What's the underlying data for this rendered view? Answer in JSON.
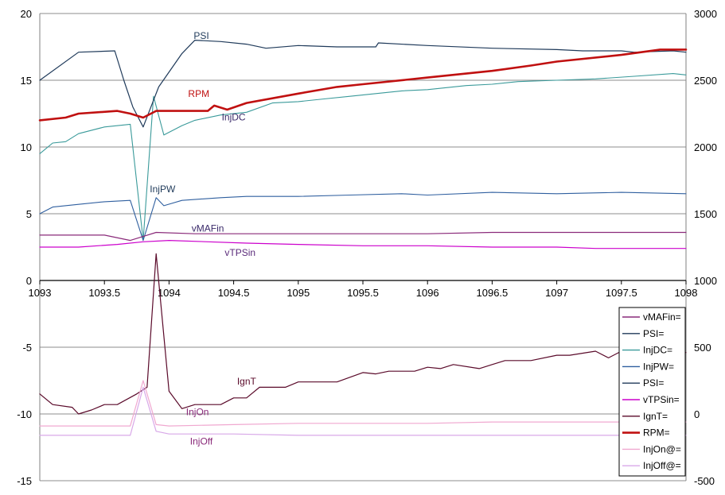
{
  "chart_data": {
    "type": "line",
    "xlim": [
      1093,
      1098
    ],
    "ylim_left": [
      -15,
      20
    ],
    "ylim_right": [
      -500,
      3000
    ],
    "x_ticks": [
      "1093",
      "1093.5",
      "1094",
      "1094.5",
      "1095",
      "1095.5",
      "1096",
      "1096.5",
      "1097",
      "1097.5",
      "1098"
    ],
    "y_ticks_left": [
      "-15",
      "-10",
      "-5",
      "0",
      "5",
      "10",
      "15",
      "20"
    ],
    "y_ticks_right": [
      "-500",
      "0",
      "500",
      "1000",
      "1500",
      "2000",
      "2500",
      "3000"
    ],
    "gridlines": "horizontal",
    "legend_position": "bottom-right",
    "series": [
      {
        "name": "PSI",
        "legend": "PSI=",
        "label": "PSI",
        "axis": "left",
        "color": "#1f3a5a",
        "width": 1.2,
        "points": [
          [
            1093,
            15
          ],
          [
            1093.3,
            17.1
          ],
          [
            1093.58,
            17.2
          ],
          [
            1093.65,
            15
          ],
          [
            1093.72,
            13
          ],
          [
            1093.8,
            11.5
          ],
          [
            1093.92,
            14.5
          ],
          [
            1094.1,
            17
          ],
          [
            1094.2,
            18
          ],
          [
            1094.4,
            17.9
          ],
          [
            1094.6,
            17.7
          ],
          [
            1094.75,
            17.4
          ],
          [
            1095,
            17.6
          ],
          [
            1095.3,
            17.5
          ],
          [
            1095.6,
            17.5
          ],
          [
            1095.62,
            17.8
          ],
          [
            1096,
            17.6
          ],
          [
            1096.5,
            17.4
          ],
          [
            1097,
            17.3
          ],
          [
            1097.2,
            17.2
          ],
          [
            1097.5,
            17.2
          ],
          [
            1097.6,
            17.1
          ],
          [
            1097.9,
            17.2
          ],
          [
            1098,
            17.1
          ]
        ]
      },
      {
        "name": "RPM",
        "legend": "RPM=",
        "label": "RPM",
        "axis": "right",
        "color": "#c01010",
        "width": 2.6,
        "points": [
          [
            1093,
            2200
          ],
          [
            1093.2,
            2220
          ],
          [
            1093.3,
            2250
          ],
          [
            1093.6,
            2270
          ],
          [
            1093.7,
            2250
          ],
          [
            1093.8,
            2220
          ],
          [
            1093.9,
            2270
          ],
          [
            1094,
            2270
          ],
          [
            1094.3,
            2270
          ],
          [
            1094.35,
            2310
          ],
          [
            1094.45,
            2280
          ],
          [
            1094.6,
            2330
          ],
          [
            1095,
            2400
          ],
          [
            1095.3,
            2450
          ],
          [
            1095.5,
            2470
          ],
          [
            1096,
            2520
          ],
          [
            1096.5,
            2570
          ],
          [
            1096.8,
            2610
          ],
          [
            1097,
            2640
          ],
          [
            1097.5,
            2690
          ],
          [
            1097.8,
            2730
          ],
          [
            1098,
            2730
          ]
        ]
      },
      {
        "name": "InjDC",
        "legend": "InjDC=",
        "label": "InjDC",
        "axis": "left",
        "color": "#3a9a9a",
        "width": 1.1,
        "points": [
          [
            1093,
            9.5
          ],
          [
            1093.1,
            10.3
          ],
          [
            1093.2,
            10.4
          ],
          [
            1093.3,
            11
          ],
          [
            1093.5,
            11.5
          ],
          [
            1093.7,
            11.7
          ],
          [
            1093.8,
            3
          ],
          [
            1093.88,
            13.8
          ],
          [
            1093.96,
            10.9
          ],
          [
            1094.1,
            11.6
          ],
          [
            1094.2,
            12
          ],
          [
            1094.4,
            12.4
          ],
          [
            1094.6,
            12.6
          ],
          [
            1094.8,
            13.3
          ],
          [
            1095,
            13.4
          ],
          [
            1095.2,
            13.6
          ],
          [
            1095.4,
            13.8
          ],
          [
            1095.6,
            14
          ],
          [
            1095.8,
            14.2
          ],
          [
            1096,
            14.3
          ],
          [
            1096.3,
            14.6
          ],
          [
            1096.5,
            14.7
          ],
          [
            1096.7,
            14.9
          ],
          [
            1097,
            15
          ],
          [
            1097.3,
            15.1
          ],
          [
            1097.6,
            15.3
          ],
          [
            1097.9,
            15.5
          ],
          [
            1098,
            15.4
          ]
        ]
      },
      {
        "name": "InjPW",
        "legend": "InjPW=",
        "label": "InjPW",
        "axis": "left",
        "color": "#2f5f9f",
        "width": 1.1,
        "points": [
          [
            1093,
            5
          ],
          [
            1093.1,
            5.5
          ],
          [
            1093.3,
            5.7
          ],
          [
            1093.5,
            5.9
          ],
          [
            1093.7,
            6
          ],
          [
            1093.8,
            3
          ],
          [
            1093.9,
            6.2
          ],
          [
            1093.96,
            5.6
          ],
          [
            1094.1,
            6
          ],
          [
            1094.4,
            6.2
          ],
          [
            1094.6,
            6.3
          ],
          [
            1095,
            6.3
          ],
          [
            1095.4,
            6.4
          ],
          [
            1095.8,
            6.5
          ],
          [
            1096,
            6.4
          ],
          [
            1096.5,
            6.6
          ],
          [
            1097,
            6.5
          ],
          [
            1097.5,
            6.6
          ],
          [
            1098,
            6.5
          ]
        ]
      },
      {
        "name": "vMAFin",
        "legend": "vMAFin=",
        "label": "vMAFin",
        "axis": "left",
        "color": "#8a2a7a",
        "width": 1.2,
        "points": [
          [
            1093,
            3.4
          ],
          [
            1093.5,
            3.4
          ],
          [
            1093.7,
            3
          ],
          [
            1093.8,
            3.3
          ],
          [
            1093.9,
            3.6
          ],
          [
            1094.2,
            3.5
          ],
          [
            1094.5,
            3.5
          ],
          [
            1095,
            3.5
          ],
          [
            1095.5,
            3.5
          ],
          [
            1096,
            3.5
          ],
          [
            1096.5,
            3.6
          ],
          [
            1097,
            3.6
          ],
          [
            1097.5,
            3.6
          ],
          [
            1098,
            3.6
          ]
        ]
      },
      {
        "name": "vTPSin",
        "legend": "vTPSin=",
        "label": "vTPSin",
        "axis": "left",
        "color": "#cc00cc",
        "width": 1.2,
        "points": [
          [
            1093,
            2.5
          ],
          [
            1093.3,
            2.5
          ],
          [
            1093.6,
            2.7
          ],
          [
            1093.8,
            2.9
          ],
          [
            1094,
            3
          ],
          [
            1094.3,
            2.9
          ],
          [
            1094.6,
            2.8
          ],
          [
            1095,
            2.7
          ],
          [
            1095.5,
            2.6
          ],
          [
            1096,
            2.6
          ],
          [
            1096.5,
            2.5
          ],
          [
            1097,
            2.5
          ],
          [
            1097.3,
            2.4
          ],
          [
            1097.6,
            2.4
          ],
          [
            1098,
            2.4
          ]
        ]
      },
      {
        "name": "IgnT",
        "legend": "IgnT=",
        "label": "IgnT",
        "axis": "left",
        "color": "#5a0a2a",
        "width": 1.2,
        "points": [
          [
            1093,
            -8.5
          ],
          [
            1093.1,
            -9.3
          ],
          [
            1093.25,
            -9.5
          ],
          [
            1093.3,
            -10
          ],
          [
            1093.4,
            -9.7
          ],
          [
            1093.5,
            -9.3
          ],
          [
            1093.6,
            -9.3
          ],
          [
            1093.75,
            -8.5
          ],
          [
            1093.83,
            -8
          ],
          [
            1093.9,
            2
          ],
          [
            1094,
            -8.3
          ],
          [
            1094.1,
            -9.6
          ],
          [
            1094.2,
            -9.3
          ],
          [
            1094.4,
            -9.3
          ],
          [
            1094.5,
            -8.8
          ],
          [
            1094.6,
            -8.8
          ],
          [
            1094.7,
            -8
          ],
          [
            1094.9,
            -8
          ],
          [
            1095,
            -7.6
          ],
          [
            1095.3,
            -7.6
          ],
          [
            1095.5,
            -6.9
          ],
          [
            1095.6,
            -7
          ],
          [
            1095.7,
            -6.8
          ],
          [
            1095.9,
            -6.8
          ],
          [
            1096,
            -6.5
          ],
          [
            1096.1,
            -6.6
          ],
          [
            1096.2,
            -6.3
          ],
          [
            1096.4,
            -6.6
          ],
          [
            1096.5,
            -6.3
          ],
          [
            1096.6,
            -6
          ],
          [
            1096.8,
            -6
          ],
          [
            1097,
            -5.6
          ],
          [
            1097.1,
            -5.6
          ],
          [
            1097.3,
            -5.3
          ],
          [
            1097.4,
            -5.8
          ],
          [
            1097.5,
            -5.3
          ],
          [
            1097.7,
            -5.4
          ],
          [
            1097.85,
            -5.3
          ],
          [
            1098,
            -5.4
          ]
        ]
      },
      {
        "name": "InjOn@",
        "legend": "InjOn@=",
        "label": "InjOn",
        "axis": "left",
        "color": "#f0a8d0",
        "width": 1.2,
        "points": [
          [
            1093,
            -10.9
          ],
          [
            1093.7,
            -10.9
          ],
          [
            1093.8,
            -7.5
          ],
          [
            1093.9,
            -10.8
          ],
          [
            1094,
            -10.9
          ],
          [
            1094.5,
            -10.8
          ],
          [
            1095,
            -10.7
          ],
          [
            1095.5,
            -10.7
          ],
          [
            1096,
            -10.7
          ],
          [
            1096.5,
            -10.6
          ],
          [
            1097,
            -10.6
          ],
          [
            1097.5,
            -10.6
          ],
          [
            1098,
            -10.6
          ]
        ]
      },
      {
        "name": "InjOff@",
        "legend": "InjOff@=",
        "label": "InjOff",
        "axis": "left",
        "color": "#d8a8e8",
        "width": 1.2,
        "points": [
          [
            1093,
            -11.6
          ],
          [
            1093.7,
            -11.6
          ],
          [
            1093.8,
            -8
          ],
          [
            1093.9,
            -11.3
          ],
          [
            1094,
            -11.5
          ],
          [
            1094.5,
            -11.5
          ],
          [
            1095,
            -11.6
          ],
          [
            1095.5,
            -11.6
          ],
          [
            1096,
            -11.6
          ],
          [
            1096.5,
            -11.6
          ],
          [
            1097,
            -11.6
          ],
          [
            1097.5,
            -11.6
          ],
          [
            1098,
            -11.6
          ]
        ]
      }
    ],
    "annotations": [
      {
        "text": "PSI",
        "x": 1094.25,
        "y": 18.1,
        "color": "#1f3a5a"
      },
      {
        "text": "RPM",
        "x": 1094.23,
        "y": 2375,
        "axis": "right",
        "color": "#c01010"
      },
      {
        "text": "InjDC",
        "x": 1094.5,
        "y": 12,
        "color": "#3a2a6a"
      },
      {
        "text": "InjPW",
        "x": 1093.95,
        "y": 6.6,
        "color": "#1f3a5a"
      },
      {
        "text": "vMAFin",
        "x": 1094.3,
        "y": 3.65,
        "color": "#3a2a6a"
      },
      {
        "text": "vTPSin",
        "x": 1094.55,
        "y": 1.85,
        "color": "#5a2a7a"
      },
      {
        "text": "IgnT",
        "x": 1094.6,
        "y": -7.8,
        "color": "#5a0a2a"
      },
      {
        "text": "InjOn",
        "x": 1094.22,
        "y": -10.1,
        "color": "#8a2a7a"
      },
      {
        "text": "InjOff",
        "x": 1094.25,
        "y": -12.3,
        "color": "#8a2a7a"
      }
    ],
    "legend_order": [
      "vMAFin=",
      "PSI=",
      "InjDC=",
      "InjPW=",
      "PSI=",
      "vTPSin=",
      "IgnT=",
      "RPM=",
      "InjOn@=",
      "InjOff@="
    ],
    "legend_colors": [
      "#8a2a7a",
      "#1f3a5a",
      "#3a9a9a",
      "#2f5f9f",
      "#1f3a5a",
      "#cc00cc",
      "#5a0a2a",
      "#c01010",
      "#f0a8d0",
      "#d8a8e8"
    ]
  }
}
